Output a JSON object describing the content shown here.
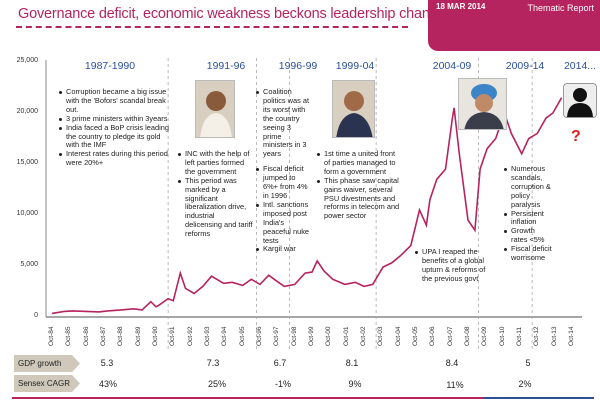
{
  "header": {
    "title": "Governance deficit, economic weakness beckons leadership change",
    "date": "18 MAR 2014",
    "report_type": "Thematic Report",
    "accent": "#b5245f"
  },
  "periods": [
    {
      "label": "1987-1990",
      "notes": [
        "Corruption became a big issue with the 'Bofors' scandal break out.",
        "3 prime ministers within 3years",
        "India faced a BoP crisis leading the country to pledge its gold with the IMF",
        "Interest rates during this period were  20%+"
      ]
    },
    {
      "label": "1991-96",
      "notes": [
        "INC with the help of left parties formed the government",
        "This period was marked by a significant liberalization drive, industrial delicensing  and tariff reforms"
      ]
    },
    {
      "label": "1996-99",
      "notes": [
        "Coalition politics was at its worst with the country seeing 3 prime ministers in 3 years",
        "Fiscal deficit jumped to 6%+ from 4% in 1996",
        "Intl. sanctions imposed post India's peaceful nuke tests",
        "Kargil war"
      ]
    },
    {
      "label": "1999-04",
      "notes": [
        "1st time a united front of parties managed to form a government",
        "This phase saw capital gains waiver, several PSU divestments and reforms in telecom and power sector"
      ]
    },
    {
      "label": "2004-09",
      "notes": [
        "UPA I reaped the benefits of a global upturn & reforms of the previous govt"
      ]
    },
    {
      "label": "2009-14",
      "notes": [
        "Numerous scandals, corruption & policy paralysis",
        "Persistent inflation",
        "Growth rates <5%",
        "Fiscal deficit worrisome"
      ]
    },
    {
      "label": "2014...",
      "question": "?"
    }
  ],
  "table": {
    "rows": [
      {
        "label": "GDP growth",
        "values": [
          "5.3",
          "7.3",
          "6.7",
          "8.1",
          "8.4",
          "5"
        ]
      },
      {
        "label": "Sensex CAGR",
        "values": [
          "43%",
          "25%",
          "-1%",
          "9%",
          "11%",
          "2%"
        ]
      }
    ]
  },
  "chart_data": {
    "type": "line",
    "title": "",
    "ylim": [
      0,
      25000
    ],
    "yticks": [
      "0",
      "5,000",
      "10,000",
      "15,000",
      "20,000",
      "25,000"
    ],
    "xticks": [
      "Oct-84",
      "Oct-85",
      "Oct-86",
      "Oct-87",
      "Oct-88",
      "Oct-89",
      "Oct-90",
      "Oct-91",
      "Oct-92",
      "Oct-93",
      "Oct-94",
      "Oct-95",
      "Oct-96",
      "Oct-97",
      "Oct-98",
      "Oct-99",
      "Oct-00",
      "Oct-01",
      "Oct-02",
      "Oct-03",
      "Oct-04",
      "Oct-05",
      "Oct-06",
      "Oct-07",
      "Oct-08",
      "Oct-09",
      "Oct-10",
      "Oct-11",
      "Oct-12",
      "Oct-13",
      "Oct-14"
    ],
    "period_boundaries": [
      1991.0,
      1996.1,
      1998.0,
      2003.0,
      2008.9,
      2012.0
    ],
    "line_color": "#b5245f",
    "series": [
      {
        "x": [
          1984.8,
          1985.5,
          1986.0,
          1986.8,
          1987.5,
          1988.0,
          1988.8,
          1989.5,
          1990.0,
          1990.5,
          1990.8,
          1991.0,
          1991.5,
          1991.8,
          1992.2,
          1992.5,
          1993.0,
          1993.5,
          1994.0,
          1994.7,
          1995.2,
          1995.8,
          1996.3,
          1996.8,
          1997.3,
          1997.7,
          1998.2,
          1998.8,
          1999.4,
          1999.8,
          2000.1,
          2000.5,
          2001.0,
          2001.7,
          2002.3,
          2002.8,
          2003.3,
          2003.9,
          2004.4,
          2004.9,
          2005.5,
          2006.0,
          2006.4,
          2006.6,
          2007.0,
          2007.5,
          2007.9,
          2008.0,
          2008.3,
          2008.8,
          2009.2,
          2009.5,
          2009.9,
          2010.4,
          2010.9,
          2011.3,
          2011.9,
          2012.3,
          2012.8,
          2013.3,
          2013.7,
          2014.2
        ],
        "y": [
          350,
          550,
          600,
          550,
          500,
          600,
          700,
          800,
          700,
          1500,
          1000,
          1200,
          1800,
          1600,
          4300,
          2800,
          2300,
          3000,
          4000,
          3300,
          3400,
          3100,
          3700,
          3200,
          4100,
          3600,
          3000,
          3200,
          4300,
          4400,
          5500,
          4500,
          3700,
          3200,
          3400,
          3000,
          3200,
          4900,
          5300,
          6000,
          7000,
          10500,
          9000,
          11500,
          13500,
          14500,
          19500,
          20500,
          16000,
          9500,
          8500,
          14500,
          16500,
          17500,
          20000,
          18000,
          16000,
          17500,
          18000,
          19500,
          20000,
          21500
        ]
      }
    ]
  }
}
